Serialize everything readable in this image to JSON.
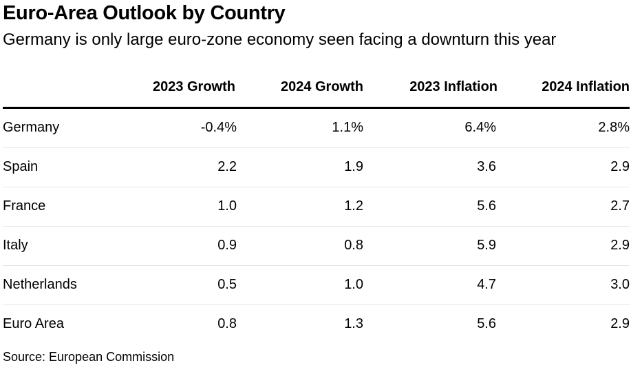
{
  "title": "Euro-Area Outlook by Country",
  "subtitle": "Germany is only large euro-zone economy seen facing a downturn this year",
  "source": "Source: European Commission",
  "chart_data": {
    "type": "table",
    "title": "Euro-Area Outlook by Country",
    "columns": [
      "",
      "2023 Growth",
      "2024 Growth",
      "2023 Inflation",
      "2024 Inflation"
    ],
    "rows": [
      {
        "country": "Germany",
        "values": [
          "-0.4%",
          "1.1%",
          "6.4%",
          "2.8%"
        ]
      },
      {
        "country": "Spain",
        "values": [
          "2.2",
          "1.9",
          "3.6",
          "2.9"
        ]
      },
      {
        "country": "France",
        "values": [
          "1.0",
          "1.2",
          "5.6",
          "2.7"
        ]
      },
      {
        "country": "Italy",
        "values": [
          "0.9",
          "0.8",
          "5.9",
          "2.9"
        ]
      },
      {
        "country": "Netherlands",
        "values": [
          "0.5",
          "1.0",
          "4.7",
          "3.0"
        ]
      },
      {
        "country": "Euro Area",
        "values": [
          "0.8",
          "1.3",
          "5.6",
          "2.9"
        ]
      }
    ]
  }
}
